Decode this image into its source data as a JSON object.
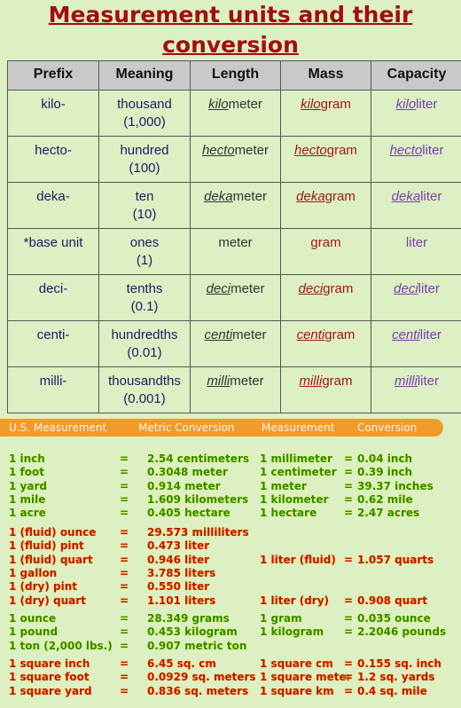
{
  "title": [
    "Measurement units and their",
    "conversion"
  ],
  "table": {
    "header": [
      "Prefix",
      "Meaning",
      "Length",
      "Mass",
      "Capacity"
    ],
    "rows": [
      {
        "prefix": "kilo-",
        "meaning": [
          "thousand",
          "(1,000)"
        ],
        "length": {
          "underlined": "kilo",
          "rest": "meter"
        },
        "mass": {
          "underlined": "kilo",
          "rest": "gram"
        },
        "capacity": {
          "underlined": "kilo",
          "rest": "liter"
        }
      },
      {
        "prefix": "hecto-",
        "meaning": [
          "hundred",
          "(100)"
        ],
        "length": {
          "underlined": "hecto",
          "rest": "meter"
        },
        "mass": {
          "underlined": "hecto",
          "rest": "gram"
        },
        "capacity": {
          "underlined": "hecto",
          "rest": "liter"
        }
      },
      {
        "prefix": "deka-",
        "meaning": [
          "ten",
          "(10)"
        ],
        "length": {
          "underlined": "deka",
          "rest": "meter"
        },
        "mass": {
          "underlined": "deka",
          "rest": "gram"
        },
        "capacity": {
          "underlined": "deka",
          "rest": "liter"
        }
      },
      {
        "prefix": "*base unit",
        "meaning": [
          "ones",
          "(1)"
        ],
        "length": "meter",
        "mass": "gram",
        "capacity": "liter"
      },
      {
        "prefix": "deci-",
        "meaning": [
          "tenths",
          "(0.1)"
        ],
        "length": {
          "underlined": "deci",
          "rest": "meter"
        },
        "mass": {
          "underlined": "deci",
          "rest": "gram"
        },
        "capacity": {
          "underlined": "deci",
          "rest": "liter"
        }
      },
      {
        "prefix": "centi-",
        "meaning": [
          "hundredths",
          "(0.01)"
        ],
        "length": {
          "underlined": "centi",
          "rest": "meter"
        },
        "mass": {
          "underlined": "centi",
          "rest": "gram"
        },
        "capacity": {
          "underlined": "centi",
          "rest": "liter"
        }
      },
      {
        "prefix": "milli-",
        "meaning": [
          "thousandths",
          "(0.001)"
        ],
        "length": {
          "underlined": "milli",
          "rest": "meter"
        },
        "mass": {
          "underlined": "milli",
          "rest": "gram"
        },
        "capacity": {
          "underlined": "milli",
          "rest": "liter"
        }
      }
    ]
  },
  "conversion": {
    "header": [
      "U.S. Measurement",
      "Metric Conversion",
      "Measurement",
      "Conversion"
    ],
    "groups": [
      {
        "color": "green",
        "rows": [
          [
            "1 inch",
            "=",
            "2.54 centimeters",
            "1 millimeter",
            "=",
            "0.04 inch"
          ],
          [
            "1 foot",
            "=",
            "0.3048 meter",
            "1 centimeter",
            "=",
            "0.39 inch"
          ],
          [
            "1 yard",
            "=",
            "0.914 meter",
            "1 meter",
            "=",
            "39.37 inches"
          ],
          [
            "1 mile",
            "=",
            "1.609 kilometers",
            "1 kilometer",
            "=",
            "0.62 mile"
          ],
          [
            "1 acre",
            "=",
            "0.405 hectare",
            "1 hectare",
            "=",
            "2.47 acres"
          ]
        ]
      },
      {
        "color": "red",
        "rows": [
          [
            "1 (fluid) ounce",
            "=",
            "29.573 milliliters"
          ],
          [
            "1 (fluid) pint",
            "=",
            "0.473 liter"
          ],
          [
            "1 (fluid) quart",
            "=",
            "0.946 liter",
            "1 liter (fluid)",
            "=",
            "1.057 quarts"
          ],
          [
            "1 gallon",
            "=",
            "3.785 liters"
          ],
          [
            "1 (dry) pint",
            "=",
            "0.550 liter"
          ],
          [
            "1 (dry) quart",
            "=",
            "1.101 liters",
            "1 liter (dry)",
            "=",
            "0.908 quart"
          ]
        ]
      },
      {
        "color": "green",
        "rows": [
          [
            "1 ounce",
            "=",
            "28.349 grams",
            "1 gram",
            "=",
            "0.035 ounce"
          ],
          [
            "1 pound",
            "=",
            "0.453 kilogram",
            "1 kilogram",
            "=",
            "2.2046 pounds"
          ],
          [
            "1 ton (2,000 lbs.)",
            "=",
            "0.907 metric ton"
          ]
        ]
      },
      {
        "color": "red",
        "rows": [
          [
            "1 square inch",
            "=",
            "6.45 sq. cm",
            "1 square cm",
            "=",
            "0.155 sq. inch"
          ],
          [
            "1 square foot",
            "=",
            "0.0929 sq. meters",
            "1 square meter",
            "=",
            "1.2 sq. yards"
          ],
          [
            "1 square yard",
            "=",
            "0.836 sq. meters",
            "1 square km",
            "=",
            "0.4 sq. mile"
          ]
        ]
      }
    ]
  }
}
